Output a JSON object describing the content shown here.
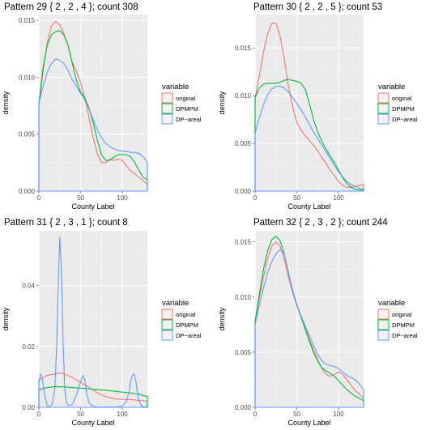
{
  "colors": {
    "panel_bg": "#ebebeb",
    "grid_major": "#ffffff",
    "grid_minor": "#f4f4f4",
    "series": [
      "#f8766d",
      "#00ba38",
      "#619cff"
    ]
  },
  "legend": {
    "title": "variable",
    "entries": [
      "original",
      "DPMPM",
      "DP−areal"
    ]
  },
  "chart_data": [
    {
      "type": "line",
      "title": "Pattern 29 { 2 ,  2 ,  4 }; count 308",
      "xlabel": "County Label",
      "ylabel": "density",
      "xlim": [
        0,
        130
      ],
      "ylim": [
        0,
        0.0155
      ],
      "xticks": [
        0,
        50,
        100
      ],
      "yticks": [
        0.0,
        0.005,
        0.01,
        0.015
      ],
      "ytick_labels": [
        "0.000",
        "0.005",
        "0.010",
        "0.015"
      ],
      "grid": true,
      "legend_position": "right",
      "series": [
        {
          "name": "original",
          "x": [
            0,
            5,
            10,
            15,
            20,
            25,
            30,
            35,
            40,
            45,
            50,
            55,
            60,
            65,
            70,
            75,
            80,
            85,
            90,
            95,
            100,
            105,
            110,
            115,
            120,
            125,
            130
          ],
          "y": [
            0.0075,
            0.0105,
            0.013,
            0.0145,
            0.0149,
            0.0146,
            0.0138,
            0.0128,
            0.0113,
            0.0105,
            0.0095,
            0.0082,
            0.0065,
            0.0047,
            0.0033,
            0.0025,
            0.0025,
            0.0028,
            0.0027,
            0.0028,
            0.0027,
            0.0022,
            0.0018,
            0.0015,
            0.0012,
            0.0009,
            0.0006
          ]
        },
        {
          "name": "DPMPM",
          "x": [
            0,
            5,
            10,
            15,
            20,
            25,
            30,
            35,
            40,
            45,
            50,
            55,
            60,
            65,
            70,
            75,
            80,
            85,
            90,
            95,
            100,
            105,
            110,
            115,
            120,
            125,
            130
          ],
          "y": [
            0.0077,
            0.0108,
            0.0128,
            0.0137,
            0.014,
            0.0141,
            0.0137,
            0.0128,
            0.0112,
            0.0097,
            0.0087,
            0.0082,
            0.0073,
            0.006,
            0.0045,
            0.0032,
            0.0027,
            0.0027,
            0.003,
            0.0032,
            0.0032,
            0.0032,
            0.003,
            0.0025,
            0.0018,
            0.0012,
            0.001
          ]
        },
        {
          "name": "DP−areal",
          "x": [
            0,
            5,
            10,
            15,
            20,
            25,
            30,
            35,
            40,
            45,
            50,
            55,
            60,
            65,
            70,
            75,
            80,
            85,
            90,
            95,
            100,
            105,
            110,
            115,
            120,
            125,
            130
          ],
          "y": [
            0.0077,
            0.0092,
            0.0104,
            0.0112,
            0.0116,
            0.0115,
            0.0112,
            0.0106,
            0.0098,
            0.0092,
            0.0086,
            0.008,
            0.0072,
            0.0063,
            0.0054,
            0.0047,
            0.0042,
            0.0039,
            0.0037,
            0.0036,
            0.0035,
            0.0035,
            0.0034,
            0.0034,
            0.0033,
            0.003,
            0.0025
          ]
        }
      ]
    },
    {
      "type": "line",
      "title": "Pattern 30 { 2 ,  2 ,  5 }; count 53",
      "xlabel": "County Label",
      "ylabel": "density",
      "xlim": [
        0,
        130
      ],
      "ylim": [
        0,
        0.0185
      ],
      "xticks": [
        0,
        50,
        100
      ],
      "yticks": [
        0.0,
        0.005,
        0.01,
        0.015
      ],
      "ytick_labels": [
        "0.000",
        "0.005",
        "0.010",
        "0.015"
      ],
      "grid": true,
      "legend_position": "right",
      "series": [
        {
          "name": "original",
          "x": [
            0,
            5,
            10,
            15,
            20,
            25,
            30,
            35,
            40,
            45,
            50,
            55,
            60,
            65,
            70,
            75,
            80,
            85,
            90,
            95,
            100,
            105,
            110,
            115,
            120,
            125,
            130
          ],
          "y": [
            0.0098,
            0.012,
            0.0145,
            0.0165,
            0.0176,
            0.0176,
            0.0162,
            0.0138,
            0.011,
            0.0088,
            0.0072,
            0.0064,
            0.0058,
            0.0053,
            0.0048,
            0.0042,
            0.0035,
            0.0029,
            0.0022,
            0.0016,
            0.001,
            0.0006,
            0.0004,
            0.0004,
            0.0005,
            0.0006,
            0.0007
          ]
        },
        {
          "name": "DPMPM",
          "x": [
            0,
            5,
            10,
            15,
            20,
            25,
            30,
            35,
            40,
            45,
            50,
            55,
            60,
            65,
            70,
            75,
            80,
            85,
            90,
            95,
            100,
            105,
            110,
            115,
            120,
            125,
            130
          ],
          "y": [
            0.0098,
            0.0108,
            0.0112,
            0.0113,
            0.0113,
            0.0113,
            0.0114,
            0.0116,
            0.0117,
            0.0116,
            0.0115,
            0.0113,
            0.0107,
            0.0092,
            0.0075,
            0.0062,
            0.0052,
            0.0044,
            0.0037,
            0.003,
            0.0022,
            0.0014,
            0.0008,
            0.0004,
            0.0002,
            0.0001,
            0.0001
          ]
        },
        {
          "name": "DP−areal",
          "x": [
            0,
            5,
            10,
            15,
            20,
            25,
            30,
            35,
            40,
            45,
            50,
            55,
            60,
            65,
            70,
            75,
            80,
            85,
            90,
            95,
            100,
            105,
            110,
            115,
            120,
            125,
            130
          ],
          "y": [
            0.006,
            0.0077,
            0.009,
            0.0101,
            0.0107,
            0.011,
            0.011,
            0.0108,
            0.0104,
            0.0098,
            0.0092,
            0.0085,
            0.0078,
            0.007,
            0.0062,
            0.0055,
            0.0048,
            0.0041,
            0.0034,
            0.0027,
            0.002,
            0.0015,
            0.001,
            0.0007,
            0.0005,
            0.0003,
            0.0002
          ]
        }
      ]
    },
    {
      "type": "line",
      "title": "Pattern 31 { 2 ,  3 ,  1 }; count 8",
      "xlabel": "County Label",
      "ylabel": "density",
      "xlim": [
        0,
        130
      ],
      "ylim": [
        0,
        0.058
      ],
      "xticks": [
        0,
        50,
        100
      ],
      "yticks": [
        0.0,
        0.02,
        0.04
      ],
      "ytick_labels": [
        "0.00",
        "0.02",
        "0.04"
      ],
      "grid": true,
      "legend_position": "right",
      "series": [
        {
          "name": "original",
          "x": [
            0,
            10,
            20,
            25,
            30,
            40,
            50,
            60,
            70,
            80,
            90,
            100,
            110,
            120,
            130
          ],
          "y": [
            0.009,
            0.0105,
            0.011,
            0.0113,
            0.011,
            0.0098,
            0.0082,
            0.0065,
            0.0048,
            0.0035,
            0.0028,
            0.0026,
            0.0025,
            0.0023,
            0.002
          ]
        },
        {
          "name": "DPMPM",
          "x": [
            0,
            10,
            20,
            30,
            40,
            50,
            60,
            70,
            80,
            90,
            100,
            110,
            120,
            130
          ],
          "y": [
            0.0058,
            0.0065,
            0.0068,
            0.0067,
            0.0065,
            0.0063,
            0.0061,
            0.0058,
            0.0056,
            0.0053,
            0.005,
            0.0047,
            0.0043,
            0.0035
          ]
        },
        {
          "name": "DP−areal",
          "x": [
            0,
            2,
            4,
            7,
            10,
            13,
            16,
            19,
            21,
            23,
            25,
            27,
            29,
            31,
            33,
            36,
            40,
            45,
            50,
            53,
            55,
            57,
            60,
            65,
            70,
            75,
            80,
            85,
            90,
            95,
            100,
            105,
            108,
            110,
            112,
            114,
            116,
            118,
            120,
            123,
            126,
            130
          ],
          "y": [
            0.008,
            0.011,
            0.0095,
            0.004,
            0.0005,
            0.0003,
            0.001,
            0.006,
            0.018,
            0.038,
            0.056,
            0.045,
            0.022,
            0.006,
            0.0015,
            0.0005,
            0.001,
            0.004,
            0.0085,
            0.0105,
            0.009,
            0.005,
            0.0015,
            0.0003,
            0.0001,
            0.0001,
            0.0001,
            0.0001,
            0.0001,
            0.0002,
            0.0005,
            0.002,
            0.005,
            0.0085,
            0.0105,
            0.011,
            0.009,
            0.005,
            0.002,
            0.0005,
            0.0002,
            0.0001
          ]
        }
      ]
    },
    {
      "type": "line",
      "title": "Pattern 32 { 2 ,  3 ,  2 }; count 244",
      "xlabel": "County Label",
      "ylabel": "density",
      "xlim": [
        0,
        130
      ],
      "ylim": [
        0,
        0.016
      ],
      "xticks": [
        0,
        50,
        100
      ],
      "yticks": [
        0.0,
        0.005,
        0.01,
        0.015
      ],
      "ytick_labels": [
        "0.000",
        "0.005",
        "0.010",
        "0.015"
      ],
      "grid": true,
      "legend_position": "right",
      "series": [
        {
          "name": "original",
          "x": [
            0,
            5,
            10,
            15,
            20,
            25,
            30,
            35,
            40,
            45,
            50,
            55,
            60,
            65,
            70,
            75,
            80,
            85,
            90,
            95,
            100,
            105,
            110,
            115,
            120,
            125,
            130
          ],
          "y": [
            0.0078,
            0.0098,
            0.0118,
            0.0135,
            0.0146,
            0.015,
            0.0146,
            0.0134,
            0.0118,
            0.0104,
            0.0092,
            0.0082,
            0.0072,
            0.0062,
            0.0052,
            0.0043,
            0.0035,
            0.003,
            0.0028,
            0.003,
            0.0032,
            0.003,
            0.0025,
            0.002,
            0.0015,
            0.0012,
            0.0008
          ]
        },
        {
          "name": "DPMPM",
          "x": [
            0,
            5,
            10,
            15,
            20,
            25,
            30,
            35,
            40,
            45,
            50,
            55,
            60,
            65,
            70,
            75,
            80,
            85,
            90,
            95,
            100,
            105,
            110,
            115,
            120,
            125,
            130
          ],
          "y": [
            0.0078,
            0.0102,
            0.0125,
            0.0142,
            0.0152,
            0.0155,
            0.0151,
            0.0139,
            0.0122,
            0.0106,
            0.0093,
            0.0082,
            0.0071,
            0.006,
            0.005,
            0.0042,
            0.0036,
            0.0033,
            0.0031,
            0.0028,
            0.0024,
            0.002,
            0.0016,
            0.0013,
            0.001,
            0.0008,
            0.0006
          ]
        },
        {
          "name": "DP−areal",
          "x": [
            0,
            5,
            10,
            15,
            20,
            25,
            30,
            35,
            40,
            45,
            50,
            55,
            60,
            65,
            70,
            75,
            80,
            85,
            90,
            95,
            100,
            105,
            110,
            115,
            120,
            125,
            130
          ],
          "y": [
            0.0075,
            0.0092,
            0.0108,
            0.0122,
            0.0132,
            0.0139,
            0.0143,
            0.0139,
            0.0122,
            0.0105,
            0.0093,
            0.0083,
            0.0074,
            0.0065,
            0.0056,
            0.0048,
            0.0042,
            0.0039,
            0.0038,
            0.0037,
            0.0035,
            0.0032,
            0.0029,
            0.0027,
            0.0025,
            0.0021,
            0.0016
          ]
        }
      ]
    }
  ]
}
